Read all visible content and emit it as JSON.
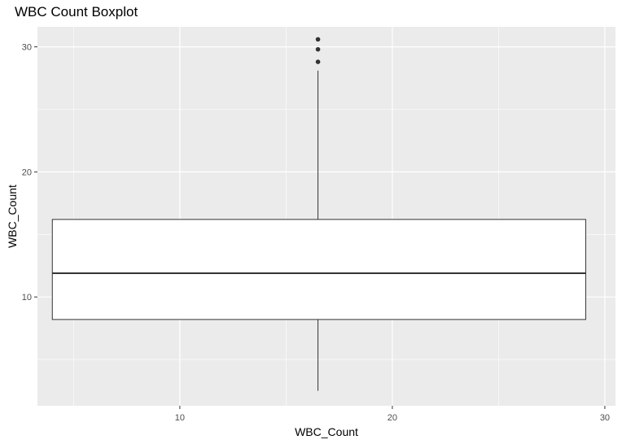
{
  "chart_data": {
    "type": "boxplot",
    "title": "WBC Count Boxplot",
    "xlabel": "WBC_Count",
    "ylabel": "WBC_Count",
    "x_ticks": [
      {
        "value": 10,
        "label": "10"
      },
      {
        "value": 20,
        "label": "20"
      },
      {
        "value": 30,
        "label": "30"
      }
    ],
    "y_ticks": [
      {
        "value": 10,
        "label": "10"
      },
      {
        "value": 20,
        "label": "20"
      },
      {
        "value": 30,
        "label": "30"
      }
    ],
    "xlim": [
      3.3,
      30.5
    ],
    "ylim": [
      1.3,
      31.6
    ],
    "grid": true,
    "background": "#ebebeb",
    "box": {
      "x_min": 4.0,
      "x_max": 29.1,
      "x_center": 16.5,
      "q1": 8.2,
      "median": 11.9,
      "q3": 16.2,
      "whisker_low": 2.5,
      "whisker_high": 28.1,
      "outliers": [
        28.8,
        29.8,
        30.6
      ]
    }
  }
}
